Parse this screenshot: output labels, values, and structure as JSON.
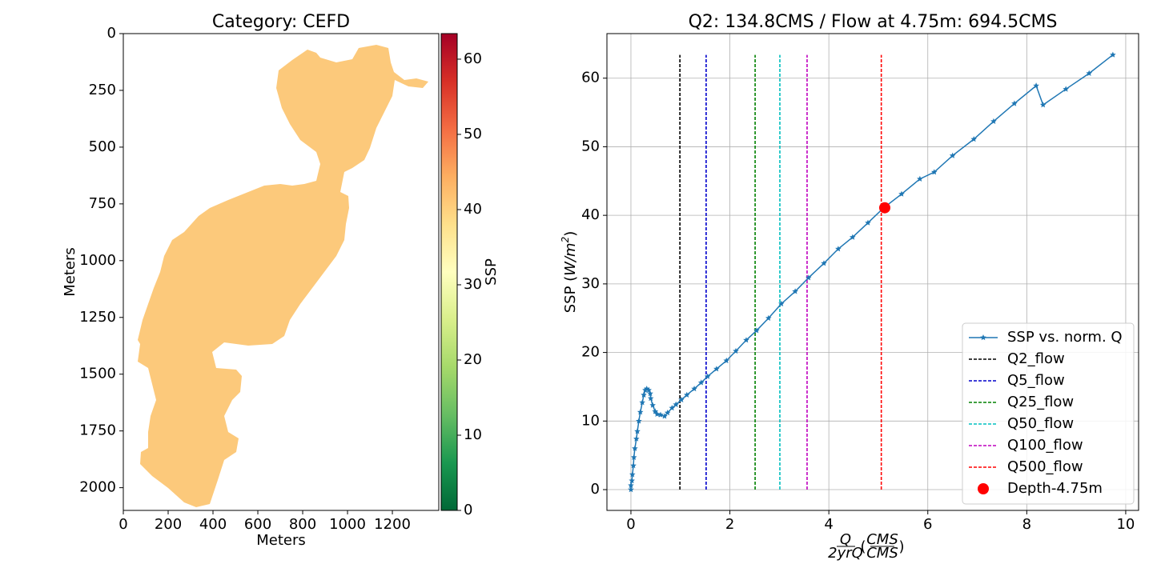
{
  "chart_data": [
    {
      "type": "image",
      "title": "Category: CEFD",
      "xlabel": "Meters",
      "ylabel": "Meters",
      "xlim": [
        0,
        1407
      ],
      "ylim": [
        2100,
        0
      ],
      "xticks": [
        0,
        200,
        400,
        600,
        800,
        1000,
        1200
      ],
      "yticks": [
        0,
        250,
        500,
        750,
        1000,
        1250,
        1500,
        1750,
        2000
      ],
      "fill_color": "#fcc97b",
      "colorbar": {
        "label": "SSP",
        "lim": [
          0,
          63.4
        ],
        "ticks": [
          0,
          10,
          20,
          30,
          40,
          50,
          60
        ],
        "colormap": "RdYlGn_r"
      }
    },
    {
      "type": "line",
      "title": "Q2: 134.8CMS / Flow at 4.75m: 694.5CMS",
      "xlabel": {
        "numerator": "Q",
        "denominator": "2yrQ",
        "open": "(",
        "unit_numerator": "CMS",
        "unit_denominator": "CMS",
        "close": ")"
      },
      "ylabel": {
        "prefix": "SSP (",
        "unit": "W/m",
        "exponent": "2",
        "suffix": ")"
      },
      "xlim": [
        -0.485,
        10.26
      ],
      "ylim": [
        -3.03,
        66.5
      ],
      "xticks": [
        0,
        2,
        4,
        6,
        8,
        10
      ],
      "yticks": [
        0,
        10,
        20,
        30,
        40,
        50,
        60
      ],
      "grid": true,
      "legend": "lower right",
      "series": [
        {
          "name": "SSP vs. norm. Q",
          "color": "#1f77b4",
          "x": [
            0,
            0,
            0.02,
            0.03,
            0.05,
            0.06,
            0.08,
            0.11,
            0.13,
            0.16,
            0.19,
            0.23,
            0.26,
            0.29,
            0.32,
            0.36,
            0.39,
            0.4,
            0.44,
            0.49,
            0.53,
            0.6,
            0.68,
            0.74,
            0.83,
            0.91,
            1.02,
            1.13,
            1.28,
            1.42,
            1.55,
            1.73,
            1.93,
            2.12,
            2.33,
            2.54,
            2.78,
            3.04,
            3.32,
            3.59,
            3.9,
            4.19,
            4.48,
            4.79,
            5.11,
            5.47,
            5.84,
            6.13,
            6.5,
            6.93,
            7.33,
            7.75,
            8.19,
            8.33,
            8.79,
            9.26,
            9.74
          ],
          "values": [
            0,
            0.6,
            1.3,
            2.2,
            3.5,
            4.7,
            6.0,
            7.4,
            8.5,
            10.0,
            11.3,
            12.7,
            13.8,
            14.5,
            14.7,
            14.5,
            14.0,
            13.3,
            12.3,
            11.4,
            11.0,
            10.9,
            10.7,
            11.2,
            11.9,
            12.4,
            13.1,
            13.8,
            14.7,
            15.6,
            16.5,
            17.6,
            18.8,
            20.2,
            21.8,
            23.2,
            25.0,
            27.1,
            28.9,
            30.9,
            33.0,
            35.1,
            36.8,
            38.9,
            41.1,
            43.1,
            45.3,
            46.3,
            48.7,
            51.1,
            53.7,
            56.3,
            58.9,
            56.1,
            58.4,
            60.7,
            63.4
          ]
        }
      ],
      "vline_range": [
        0,
        63.4
      ],
      "vlines": [
        {
          "name": "Q2_flow",
          "color": "#000000",
          "x": 0.99
        },
        {
          "name": "Q5_flow",
          "color": "#0000cc",
          "x": 1.52
        },
        {
          "name": "Q25_flow",
          "color": "#008000",
          "x": 2.51
        },
        {
          "name": "Q50_flow",
          "color": "#00bfbf",
          "x": 3.01
        },
        {
          "name": "Q100_flow",
          "color": "#bf00bf",
          "x": 3.56
        },
        {
          "name": "Q500_flow",
          "color": "#ff0000",
          "x": 5.06
        }
      ],
      "points": [
        {
          "name": "Depth-4.75m",
          "color": "#ff0000",
          "x": 5.13,
          "y": 41.1
        }
      ]
    }
  ]
}
